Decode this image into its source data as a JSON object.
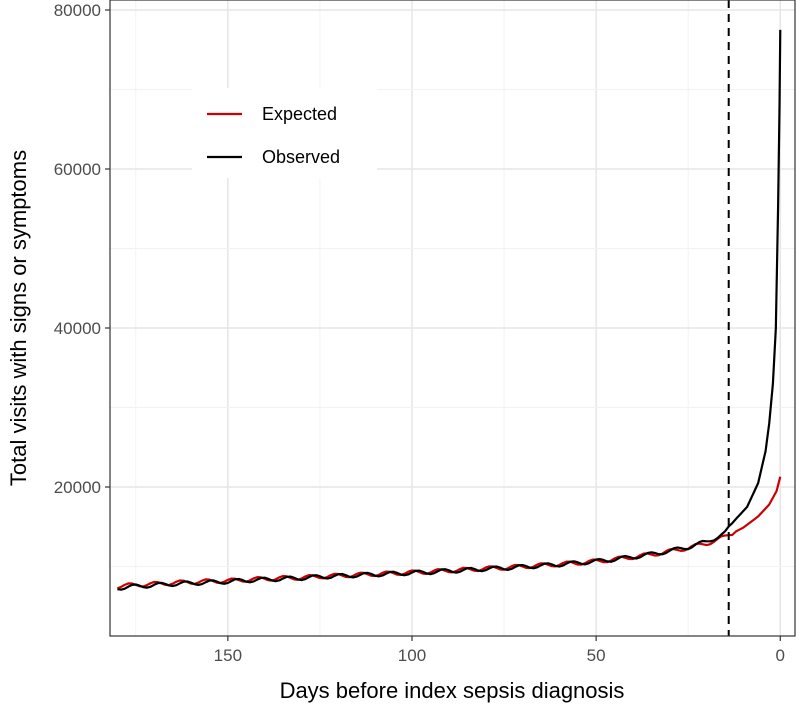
{
  "chart_data": {
    "type": "line",
    "title": "",
    "xlabel": "Days before index sepsis diagnosis",
    "ylabel": "Total visits with signs or symptoms",
    "x_reversed": true,
    "xlim": [
      182,
      -4
    ],
    "ylim": [
      0,
      80000
    ],
    "x_ticks": [
      150,
      100,
      50,
      0
    ],
    "y_ticks": [
      20000,
      40000,
      60000,
      80000
    ],
    "grid": true,
    "legend_position": "top-left",
    "reference_line": {
      "x": 14,
      "style": "dashed"
    },
    "series": [
      {
        "name": "Expected",
        "color": "#cc0000",
        "points": [
          [
            180,
            7500
          ],
          [
            175,
            7700
          ],
          [
            170,
            7800
          ],
          [
            165,
            7950
          ],
          [
            160,
            8050
          ],
          [
            155,
            8150
          ],
          [
            150,
            8200
          ],
          [
            145,
            8350
          ],
          [
            140,
            8450
          ],
          [
            135,
            8550
          ],
          [
            130,
            8600
          ],
          [
            125,
            8750
          ],
          [
            120,
            8850
          ],
          [
            115,
            8950
          ],
          [
            110,
            9050
          ],
          [
            105,
            9150
          ],
          [
            100,
            9250
          ],
          [
            95,
            9350
          ],
          [
            90,
            9500
          ],
          [
            85,
            9600
          ],
          [
            80,
            9750
          ],
          [
            75,
            9850
          ],
          [
            70,
            10000
          ],
          [
            65,
            10150
          ],
          [
            60,
            10300
          ],
          [
            55,
            10450
          ],
          [
            50,
            10650
          ],
          [
            45,
            10900
          ],
          [
            40,
            11200
          ],
          [
            35,
            11500
          ],
          [
            30,
            11900
          ],
          [
            25,
            12350
          ],
          [
            20,
            12900
          ],
          [
            15,
            13700
          ],
          [
            10,
            14900
          ],
          [
            6,
            16300
          ],
          [
            3,
            17800
          ],
          [
            1,
            19500
          ],
          [
            0,
            21300
          ]
        ]
      },
      {
        "name": "Observed",
        "color": "#000000",
        "points": [
          [
            180,
            7300
          ],
          [
            175,
            7500
          ],
          [
            170,
            7650
          ],
          [
            165,
            7800
          ],
          [
            160,
            7900
          ],
          [
            155,
            8000
          ],
          [
            150,
            8100
          ],
          [
            145,
            8250
          ],
          [
            140,
            8350
          ],
          [
            135,
            8450
          ],
          [
            130,
            8550
          ],
          [
            125,
            8700
          ],
          [
            120,
            8800
          ],
          [
            115,
            8900
          ],
          [
            110,
            9000
          ],
          [
            105,
            9100
          ],
          [
            100,
            9200
          ],
          [
            95,
            9300
          ],
          [
            90,
            9450
          ],
          [
            85,
            9550
          ],
          [
            80,
            9700
          ],
          [
            75,
            9800
          ],
          [
            70,
            9950
          ],
          [
            65,
            10100
          ],
          [
            60,
            10250
          ],
          [
            55,
            10450
          ],
          [
            50,
            10650
          ],
          [
            45,
            10900
          ],
          [
            40,
            11200
          ],
          [
            35,
            11550
          ],
          [
            30,
            11950
          ],
          [
            25,
            12450
          ],
          [
            20,
            13100
          ],
          [
            15,
            14200
          ],
          [
            12,
            16000
          ],
          [
            9,
            17500
          ],
          [
            6,
            20500
          ],
          [
            4,
            24500
          ],
          [
            3,
            28000
          ],
          [
            2,
            33000
          ],
          [
            1.2,
            40000
          ],
          [
            0.6,
            55000
          ],
          [
            0.2,
            68000
          ],
          [
            0,
            77500
          ]
        ]
      }
    ]
  }
}
